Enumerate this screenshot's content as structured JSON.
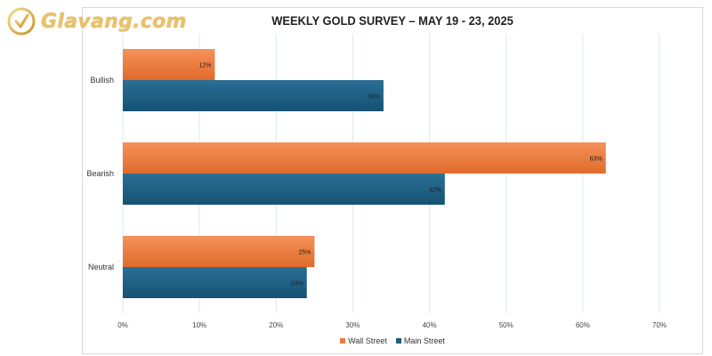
{
  "logo": {
    "text": "Glavang.com"
  },
  "chart_data": {
    "type": "bar",
    "orientation": "horizontal",
    "title": "WEEKLY GOLD SURVEY – MAY 19 - 23, 2025",
    "categories": [
      "Bullish",
      "Bearish",
      "Neutral"
    ],
    "series": [
      {
        "name": "Wall Street",
        "color": "#f07b3a",
        "values": [
          12,
          63,
          25
        ],
        "labels": [
          "12%",
          "63%",
          "25%"
        ]
      },
      {
        "name": "Main Street",
        "color": "#1f5f82",
        "values": [
          34,
          42,
          24
        ],
        "labels": [
          "34%",
          "42%",
          "24%"
        ]
      }
    ],
    "xlim": [
      0,
      70
    ],
    "xticks": [
      "0%",
      "10%",
      "20%",
      "30%",
      "40%",
      "50%",
      "60%",
      "70%"
    ],
    "grid": true,
    "legend_position": "bottom"
  }
}
